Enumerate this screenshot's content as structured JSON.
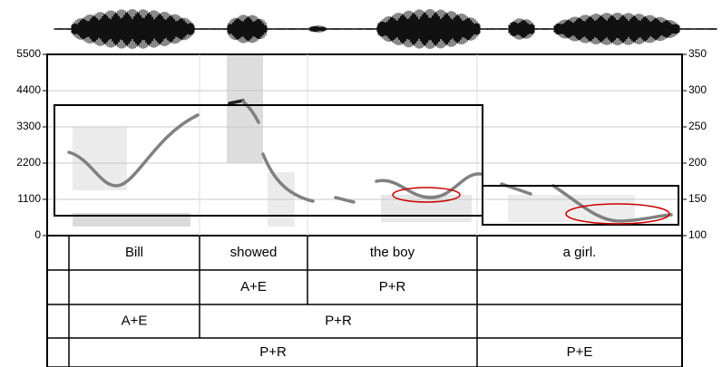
{
  "chart_data": {
    "type": "spectrogram",
    "ylim": [
      0,
      5500
    ],
    "yticks": [
      0,
      1100,
      2200,
      3300,
      4400,
      5500
    ],
    "y2lim": [
      100,
      350
    ],
    "y2ticks": [
      100,
      150,
      200,
      250,
      300,
      350
    ],
    "grid": true
  },
  "tiers": [
    [
      "Bill",
      "showed",
      "the boy",
      "a girl."
    ],
    [
      "A+E",
      "P+R"
    ],
    [
      "A+E",
      "P+R"
    ],
    [
      "P+R",
      "P+E"
    ]
  ]
}
